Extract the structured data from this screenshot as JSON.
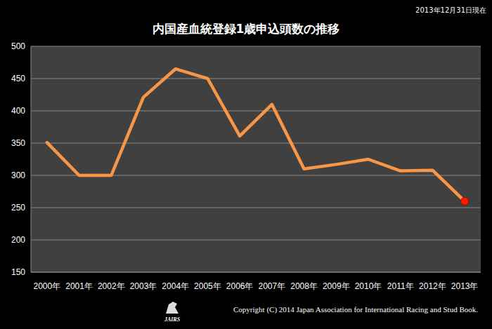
{
  "chart_data": {
    "type": "line",
    "title": "内国産血統登録1歳申込頭数の推移",
    "annotations": [
      "2013年12月31日現在",
      "Copyright (C) 2014 Japan Association for International Racing and Stud Book.",
      "JAIRS"
    ],
    "categories": [
      "2000年",
      "2001年",
      "2002年",
      "2003年",
      "2004年",
      "2005年",
      "2006年",
      "2007年",
      "2008年",
      "2009年",
      "2010年",
      "2011年",
      "2012年",
      "2013年"
    ],
    "values": [
      351,
      300,
      300,
      421,
      465,
      450,
      361,
      410,
      310,
      317,
      325,
      307,
      308,
      260
    ],
    "color": "#f79646",
    "marker": "last-circle",
    "ylim": [
      150,
      500
    ],
    "yticks": [
      150,
      200,
      250,
      300,
      350,
      400,
      450,
      500
    ],
    "grid": true
  }
}
